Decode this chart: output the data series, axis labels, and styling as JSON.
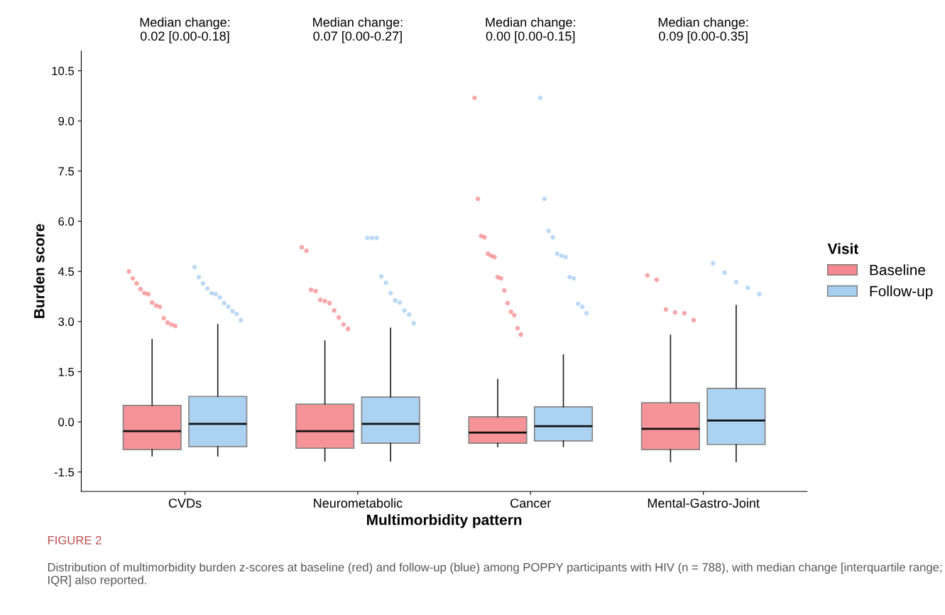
{
  "chart_data": {
    "type": "box",
    "xlabel": "Multimorbidity pattern",
    "ylabel": "Burden score",
    "legend_title": "Visit",
    "categories": [
      "CVDs",
      "Neurometabolic",
      "Cancer",
      "Mental-Gastro-Joint"
    ],
    "ylim": [
      -2.08,
      11.09
    ],
    "yticks": [
      -1.5,
      {
        "value": 0,
        "label": "0.0"
      },
      1.5,
      {
        "value": 3,
        "label": "3.0"
      },
      4.5,
      {
        "value": 6,
        "label": "6.0"
      },
      7.5,
      {
        "value": 9,
        "label": "9.0"
      },
      10.5
    ],
    "grid": false,
    "legend": "right",
    "series": [
      {
        "name": "Baseline",
        "color": "#ef3b45",
        "boxes": [
          {
            "low": -1.02,
            "q1": -0.83,
            "median": -0.28,
            "q3": 0.49,
            "high": 2.46,
            "outliers": [
              4.5,
              4.29,
              4.14,
              3.97,
              3.85,
              3.82,
              3.57,
              3.48,
              3.44,
              3.1,
              2.97,
              2.91,
              2.87
            ]
          },
          {
            "low": -1.17,
            "q1": -0.79,
            "median": -0.28,
            "q3": 0.53,
            "high": 2.42,
            "outliers": [
              5.22,
              5.12,
              3.95,
              3.91,
              3.65,
              3.61,
              3.55,
              3.33,
              3.12,
              2.91,
              2.78
            ]
          },
          {
            "low": -0.74,
            "q1": -0.64,
            "median": -0.32,
            "q3": 0.15,
            "high": 1.27,
            "outliers": [
              9.69,
              6.67,
              5.56,
              5.52,
              5.03,
              4.97,
              4.93,
              4.33,
              4.29,
              3.93,
              3.55,
              3.29,
              3.19,
              2.8,
              2.61
            ]
          },
          {
            "low": -1.19,
            "q1": -0.83,
            "median": -0.21,
            "q3": 0.57,
            "high": 2.59,
            "outliers": [
              4.38,
              4.25,
              3.36,
              3.27,
              3.25,
              3.04
            ]
          }
        ]
      },
      {
        "name": "Follow-up",
        "color": "#6aaee8",
        "boxes": [
          {
            "low": -1.02,
            "q1": -0.74,
            "median": -0.06,
            "q3": 0.76,
            "high": 2.91,
            "outliers": [
              4.63,
              4.33,
              4.14,
              3.99,
              3.85,
              3.82,
              3.72,
              3.55,
              3.44,
              3.31,
              3.23,
              3.04
            ]
          },
          {
            "low": -1.17,
            "q1": -0.64,
            "median": -0.06,
            "q3": 0.74,
            "high": 2.8,
            "outliers": [
              5.5,
              5.5,
              5.5,
              4.35,
              4.16,
              3.85,
              3.63,
              3.57,
              3.33,
              3.21,
              2.95
            ]
          },
          {
            "low": -0.74,
            "q1": -0.57,
            "median": -0.13,
            "q3": 0.45,
            "high": 2.0,
            "outliers": [
              9.69,
              6.67,
              5.71,
              5.52,
              5.03,
              4.97,
              4.93,
              4.33,
              4.29,
              3.53,
              3.44,
              3.25
            ]
          },
          {
            "low": -1.19,
            "q1": -0.68,
            "median": 0.04,
            "q3": 1.0,
            "high": 3.48,
            "outliers": [
              4.74,
              4.46,
              4.18,
              4.01,
              3.82
            ]
          }
        ]
      }
    ],
    "annotations": [
      "Median change:\n0.02 [0.00-0.18]",
      "Median change:\n0.07 [0.00-0.27]",
      "Median change:\n0.00 [0.00-0.15]",
      "Median change:\n0.09 [0.00-0.35]",
      "FIGURE 2",
      "Distribution of multimorbidity burden z-scores at baseline (red) and follow-up (blue) among POPPY participants with HIV (n = 788), with median change [interquartile range; IQR] also reported."
    ]
  }
}
